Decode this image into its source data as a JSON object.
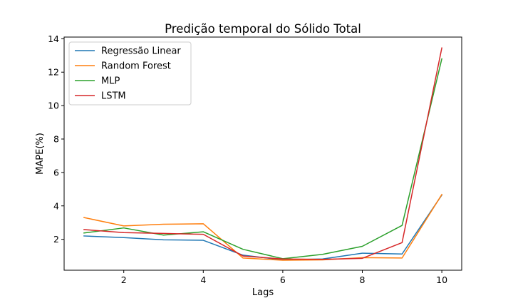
{
  "chart_data": {
    "type": "line",
    "title": "Predição temporal do Sólido Total",
    "xlabel": "Lags",
    "ylabel": "MAPE(%)",
    "x": [
      1,
      2,
      3,
      4,
      5,
      6,
      7,
      8,
      9,
      10
    ],
    "xlim": [
      0.5,
      10.5
    ],
    "ylim": [
      0.15,
      14.1
    ],
    "xticks": [
      2,
      4,
      6,
      8,
      10
    ],
    "yticks": [
      2,
      4,
      6,
      8,
      10,
      12,
      14
    ],
    "grid": false,
    "legend_position": "top-left",
    "series": [
      {
        "name": "Regressão Linear",
        "color": "#1f77b4",
        "values": [
          2.2,
          2.1,
          1.97,
          1.94,
          1.05,
          0.77,
          0.82,
          1.17,
          1.12,
          4.65
        ]
      },
      {
        "name": "Random Forest",
        "color": "#ff7f0e",
        "values": [
          3.3,
          2.8,
          2.9,
          2.93,
          0.88,
          0.75,
          0.77,
          0.9,
          0.88,
          4.68
        ]
      },
      {
        "name": "MLP",
        "color": "#2ca02c",
        "values": [
          2.38,
          2.68,
          2.25,
          2.45,
          1.4,
          0.84,
          1.1,
          1.58,
          2.83,
          12.8
        ]
      },
      {
        "name": "LSTM",
        "color": "#d62728",
        "values": [
          2.58,
          2.4,
          2.35,
          2.3,
          1.0,
          0.82,
          0.8,
          0.86,
          1.8,
          13.45
        ]
      }
    ]
  }
}
